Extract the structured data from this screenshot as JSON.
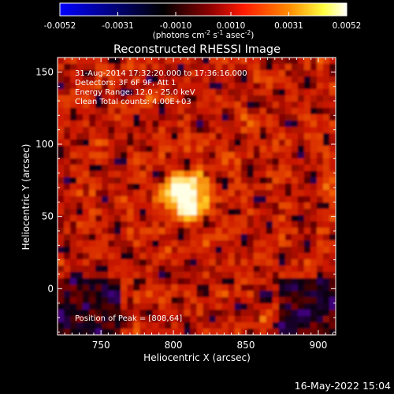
{
  "colorbar": {
    "ticks": [
      "-0.0052",
      "-0.0031",
      "-0.0010",
      "0.0010",
      "0.0031",
      "0.0052"
    ],
    "tick_values": [
      -0.0052,
      -0.0031,
      -0.001,
      0.001,
      0.0031,
      0.0052
    ],
    "units_prefix": "(photons cm",
    "units_exp1": "-2",
    "units_mid": " s",
    "units_exp2": "-1",
    "units_mid2": " asec",
    "units_exp3": "-2",
    "units_suffix": ")",
    "range": [
      -0.0052,
      0.0052
    ],
    "colors": [
      "#0000ff",
      "#000000",
      "#8b00ff",
      "#ff0000",
      "#ff8000",
      "#ffff00",
      "#ffffff"
    ]
  },
  "chart_data": {
    "type": "heatmap",
    "title": "Reconstructed RHESSI Image",
    "xlabel": "Heliocentric X (arcsec)",
    "ylabel": "Heliocentric Y (arcsec)",
    "xlim": [
      720,
      912
    ],
    "ylim": [
      -32,
      160
    ],
    "x_ticks": [
      750,
      800,
      850,
      900
    ],
    "x_tick_labels": [
      "750",
      "800",
      "850",
      "900"
    ],
    "y_ticks": [
      0,
      50,
      100,
      150
    ],
    "y_tick_labels": [
      "0",
      "50",
      "100",
      "150"
    ],
    "peak": [
      808,
      64
    ],
    "info_lines": [
      "31-Aug-2014 17:32:20.000 to 17:36:16.000",
      "Detectors: 3F 6F 9F, Att 1",
      "Energy Range: 12.0 - 25.0 keV",
      "Clean     Total counts: 4.00E+03"
    ],
    "peak_label": "Position of Peak = [808,64]"
  },
  "footer": {
    "timestamp": "16-May-2022 15:04"
  }
}
